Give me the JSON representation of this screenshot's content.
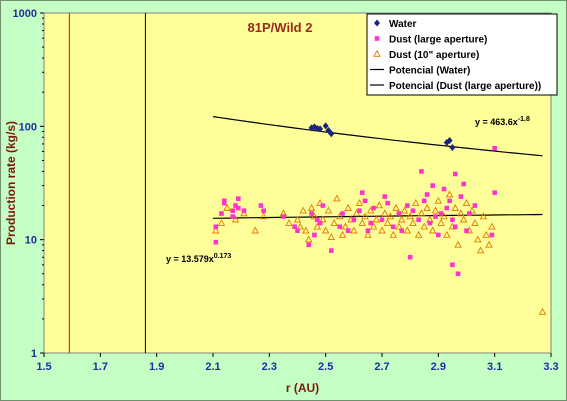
{
  "chart_data": {
    "type": "scatter",
    "title": "81P/Wild 2",
    "xlabel": "r (AU)",
    "ylabel": "Production rate (kg/s)",
    "xlim": [
      1.5,
      3.3
    ],
    "ylim": [
      1,
      1000
    ],
    "y_scale": "log",
    "x_ticks": [
      "1.5",
      "1.7",
      "1.9",
      "2.1",
      "2.3",
      "2.5",
      "2.7",
      "2.9",
      "3.1",
      "3.3"
    ],
    "y_ticks": [
      "1",
      "10",
      "100",
      "1000"
    ],
    "grid": false,
    "legend_position": "top-right",
    "reference_lines_x": [
      1.59,
      1.86
    ],
    "colors": {
      "plot_bg": "#ffff99",
      "water": "#1a237e",
      "dust_large": "#ff33cc",
      "dust_10": "#e07800",
      "fit": "#000000",
      "ref_red": "#ff0000",
      "ref_black": "#000000"
    },
    "series": [
      {
        "name": "Water",
        "marker": "diamond",
        "points": [
          [
            2.45,
            97
          ],
          [
            2.46,
            99
          ],
          [
            2.47,
            96
          ],
          [
            2.48,
            95
          ],
          [
            2.5,
            101
          ],
          [
            2.51,
            92
          ],
          [
            2.52,
            86
          ],
          [
            2.93,
            72
          ],
          [
            2.94,
            75
          ],
          [
            2.95,
            65
          ]
        ]
      },
      {
        "name": "Dust (large aperture)",
        "marker": "square",
        "points": [
          [
            2.11,
            9.5
          ],
          [
            2.11,
            13
          ],
          [
            2.13,
            17
          ],
          [
            2.14,
            21
          ],
          [
            2.14,
            22
          ],
          [
            2.17,
            16
          ],
          [
            2.17,
            18
          ],
          [
            2.18,
            20
          ],
          [
            2.19,
            23
          ],
          [
            2.19,
            19
          ],
          [
            2.21,
            18
          ],
          [
            2.27,
            20
          ],
          [
            2.28,
            18
          ],
          [
            2.35,
            16
          ],
          [
            2.39,
            13
          ],
          [
            2.4,
            12
          ],
          [
            2.44,
            9
          ],
          [
            2.45,
            17
          ],
          [
            2.46,
            11
          ],
          [
            2.47,
            15
          ],
          [
            2.48,
            14
          ],
          [
            2.49,
            20
          ],
          [
            2.52,
            8
          ],
          [
            2.55,
            13
          ],
          [
            2.56,
            17
          ],
          [
            2.58,
            12
          ],
          [
            2.6,
            15
          ],
          [
            2.62,
            18
          ],
          [
            2.63,
            26
          ],
          [
            2.64,
            22
          ],
          [
            2.65,
            12
          ],
          [
            2.66,
            14
          ],
          [
            2.67,
            19
          ],
          [
            2.7,
            15
          ],
          [
            2.71,
            24
          ],
          [
            2.72,
            21
          ],
          [
            2.74,
            13
          ],
          [
            2.76,
            17
          ],
          [
            2.77,
            12
          ],
          [
            2.79,
            20
          ],
          [
            2.8,
            7
          ],
          [
            2.81,
            18
          ],
          [
            2.83,
            15
          ],
          [
            2.84,
            40
          ],
          [
            2.85,
            22
          ],
          [
            2.86,
            25
          ],
          [
            2.87,
            14
          ],
          [
            2.88,
            30
          ],
          [
            2.89,
            16
          ],
          [
            2.9,
            11
          ],
          [
            2.91,
            17
          ],
          [
            2.92,
            28
          ],
          [
            2.93,
            19
          ],
          [
            2.94,
            22
          ],
          [
            2.95,
            15
          ],
          [
            2.95,
            6
          ],
          [
            2.96,
            38
          ],
          [
            2.96,
            13
          ],
          [
            2.97,
            5
          ],
          [
            2.98,
            24
          ],
          [
            2.99,
            31
          ],
          [
            3.0,
            12
          ],
          [
            3.01,
            17
          ],
          [
            3.03,
            20
          ],
          [
            3.09,
            11
          ],
          [
            3.1,
            26
          ],
          [
            3.1,
            64
          ]
        ]
      },
      {
        "name": "Dust (10\" aperture)",
        "marker": "triangle",
        "points": [
          [
            2.11,
            12
          ],
          [
            2.13,
            14
          ],
          [
            2.15,
            19
          ],
          [
            2.18,
            15
          ],
          [
            2.21,
            17
          ],
          [
            2.25,
            12
          ],
          [
            2.28,
            16
          ],
          [
            2.35,
            17
          ],
          [
            2.37,
            14
          ],
          [
            2.4,
            15
          ],
          [
            2.41,
            13
          ],
          [
            2.42,
            18
          ],
          [
            2.43,
            12
          ],
          [
            2.44,
            10
          ],
          [
            2.45,
            19
          ],
          [
            2.46,
            16
          ],
          [
            2.47,
            13
          ],
          [
            2.48,
            21
          ],
          [
            2.49,
            15
          ],
          [
            2.5,
            12
          ],
          [
            2.51,
            18
          ],
          [
            2.52,
            10.5
          ],
          [
            2.53,
            14
          ],
          [
            2.54,
            23
          ],
          [
            2.55,
            16
          ],
          [
            2.56,
            11
          ],
          [
            2.57,
            13
          ],
          [
            2.58,
            19
          ],
          [
            2.59,
            15
          ],
          [
            2.6,
            12
          ],
          [
            2.61,
            17
          ],
          [
            2.62,
            21
          ],
          [
            2.63,
            14
          ],
          [
            2.64,
            16
          ],
          [
            2.65,
            11
          ],
          [
            2.66,
            18
          ],
          [
            2.67,
            13
          ],
          [
            2.68,
            15
          ],
          [
            2.69,
            20
          ],
          [
            2.7,
            12
          ],
          [
            2.71,
            17
          ],
          [
            2.72,
            14
          ],
          [
            2.73,
            16
          ],
          [
            2.74,
            11
          ],
          [
            2.75,
            19
          ],
          [
            2.76,
            13
          ],
          [
            2.77,
            15
          ],
          [
            2.78,
            18
          ],
          [
            2.79,
            12
          ],
          [
            2.8,
            16
          ],
          [
            2.81,
            14
          ],
          [
            2.82,
            21
          ],
          [
            2.83,
            11
          ],
          [
            2.84,
            17
          ],
          [
            2.85,
            13
          ],
          [
            2.86,
            19
          ],
          [
            2.87,
            15
          ],
          [
            2.88,
            12
          ],
          [
            2.89,
            18
          ],
          [
            2.9,
            22
          ],
          [
            2.91,
            14
          ],
          [
            2.92,
            16
          ],
          [
            2.93,
            11
          ],
          [
            2.94,
            25
          ],
          [
            2.95,
            13
          ],
          [
            2.96,
            19
          ],
          [
            2.97,
            9
          ],
          [
            2.98,
            17
          ],
          [
            2.99,
            15
          ],
          [
            3.0,
            21
          ],
          [
            3.01,
            12
          ],
          [
            3.02,
            18
          ],
          [
            3.03,
            14
          ],
          [
            3.04,
            10
          ],
          [
            3.05,
            8
          ],
          [
            3.06,
            16
          ],
          [
            3.07,
            11
          ],
          [
            3.08,
            9
          ],
          [
            3.09,
            13
          ],
          [
            3.27,
            2.3
          ]
        ]
      }
    ],
    "fits": [
      {
        "name": "Potencial (Water)",
        "equation": "y = 463.6x",
        "exponent": "-1.8",
        "a": 463.6,
        "b": -1.8,
        "x_range": [
          2.1,
          3.27
        ]
      },
      {
        "name": "Potencial (Dust (large aperture))",
        "equation": "y = 13.579x",
        "exponent": "0.173",
        "a": 13.579,
        "b": 0.173,
        "x_range": [
          2.1,
          3.27
        ]
      }
    ]
  }
}
